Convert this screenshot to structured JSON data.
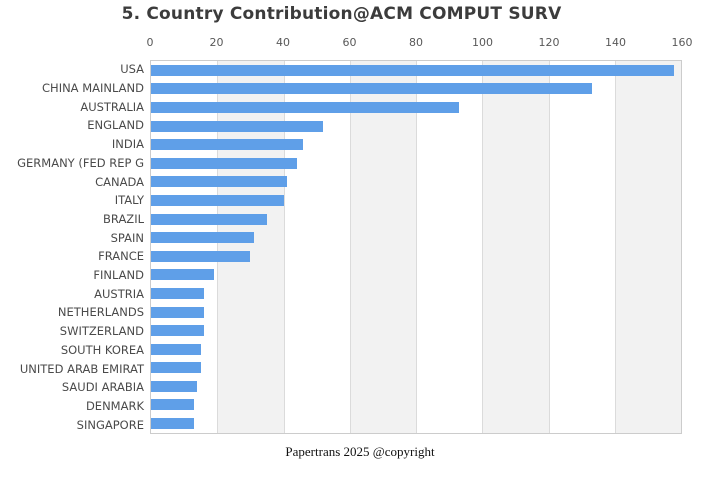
{
  "header": {
    "title": "5. Country Contribution@ACM COMPUT SURV"
  },
  "footer": {
    "text": "Papertrans 2025 @copyright"
  },
  "colors": {
    "bar": "#5f9fe8",
    "band_white": "#ffffff",
    "band_gray": "#f2f2f2",
    "gridline": "#dbdbdb",
    "plot_border": "#cccccc",
    "title_text": "#3c3c3c",
    "tick_text": "#595959",
    "label_text": "#4a4a4a"
  },
  "chart_data": {
    "type": "bar",
    "orientation": "horizontal",
    "title": "5. Country Contribution@ACM COMPUT SURV",
    "xlabel": "",
    "ylabel": "",
    "xlim": [
      0,
      160
    ],
    "x_ticks": [
      0,
      20,
      40,
      60,
      80,
      100,
      120,
      140,
      160
    ],
    "axis_position": "top",
    "grid": true,
    "legend": false,
    "categories": [
      "USA",
      "CHINA MAINLAND",
      "AUSTRALIA",
      "ENGLAND",
      "INDIA",
      "GERMANY (FED REP G",
      "CANADA",
      "ITALY",
      "BRAZIL",
      "SPAIN",
      "FRANCE",
      "FINLAND",
      "AUSTRIA",
      "NETHERLANDS",
      "SWITZERLAND",
      "SOUTH KOREA",
      "UNITED ARAB EMIRAT",
      "SAUDI ARABIA",
      "DENMARK",
      "SINGAPORE"
    ],
    "values": [
      158,
      133,
      93,
      52,
      46,
      44,
      41,
      40,
      35,
      31,
      30,
      19,
      16,
      16,
      16,
      15,
      15,
      14,
      13,
      13
    ]
  }
}
